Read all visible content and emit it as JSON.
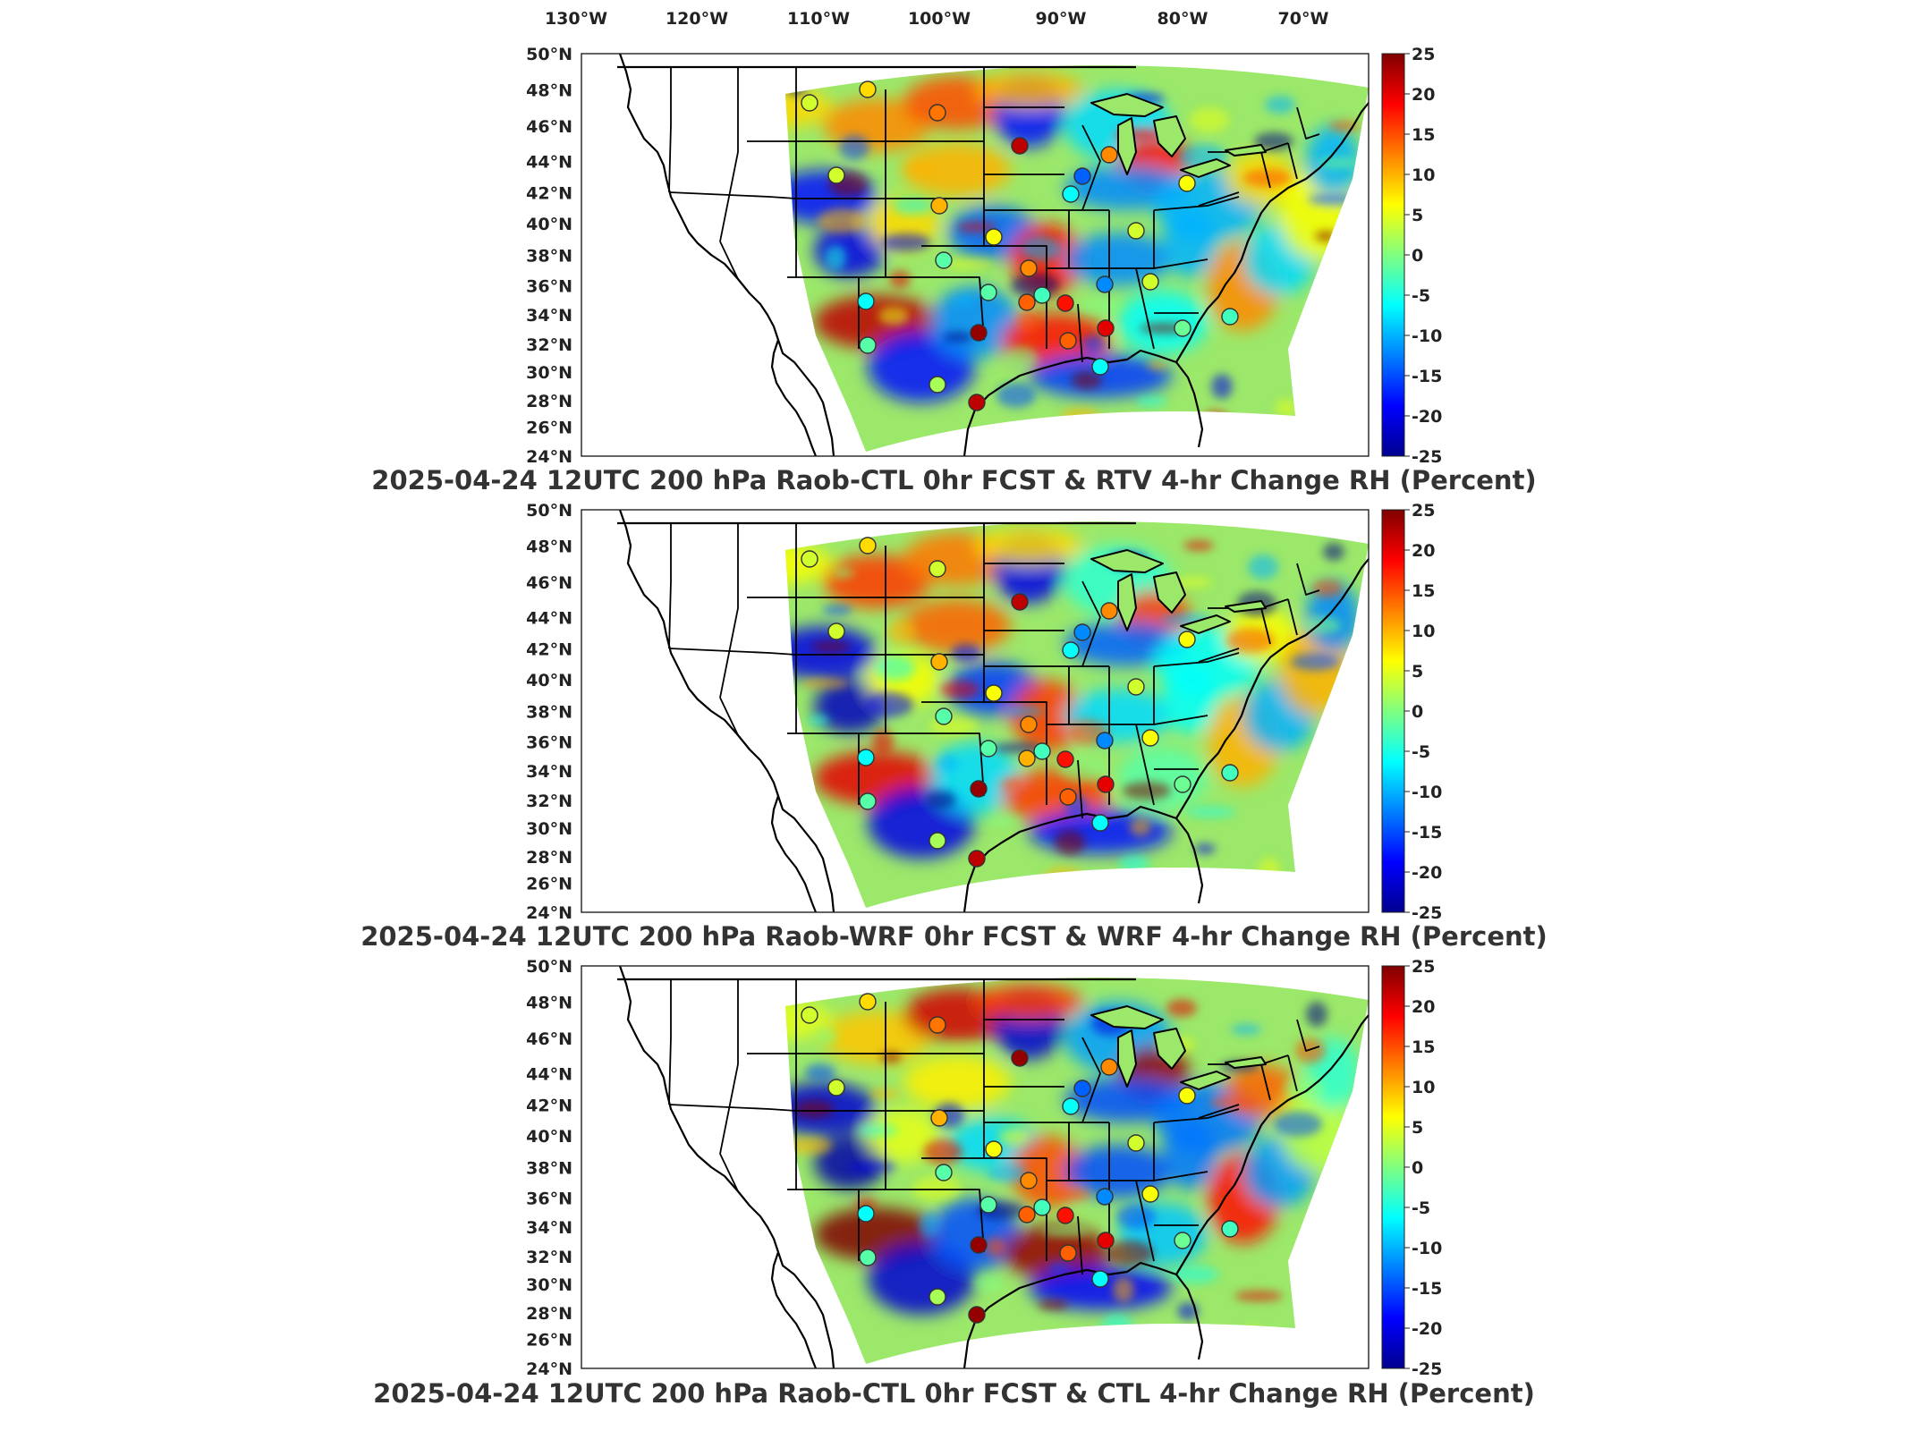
{
  "longitude_labels": [
    "130°W",
    "120°W",
    "110°W",
    "100°W",
    "90°W",
    "80°W",
    "70°W"
  ],
  "latitude_labels": [
    "50°N",
    "48°N",
    "46°N",
    "44°N",
    "42°N",
    "40°N",
    "38°N",
    "36°N",
    "34°N",
    "32°N",
    "30°N",
    "28°N",
    "26°N",
    "24°N"
  ],
  "colorbar": {
    "ticks": [
      "25",
      "20",
      "15",
      "10",
      "5",
      "0",
      "-5",
      "-10",
      "-15",
      "-20",
      "-25"
    ],
    "range": [
      -25,
      25
    ],
    "colormap": "jet",
    "colors": [
      "#00008f",
      "#0000ff",
      "#0080ff",
      "#00ffff",
      "#80ff80",
      "#ffff00",
      "#ff8000",
      "#ff0000",
      "#800000"
    ]
  },
  "panels": [
    {
      "title": "2025-04-24 12UTC 200 hPa Raob-CTL 0hr FCST & RTV 4-hr Change RH (Percent)",
      "raob_values": [
        4,
        8,
        13,
        22,
        -14,
        4,
        10,
        12,
        -6,
        4,
        -2,
        6,
        12,
        -3,
        4,
        14,
        18,
        24,
        -12,
        6,
        -2,
        -6,
        20,
        14,
        -2,
        -6,
        -1,
        -3,
        22,
        2
      ]
    },
    {
      "title": "2025-04-24 12UTC 200 hPa Raob-WRF 0hr FCST & WRF 4-hr Change RH (Percent)",
      "raob_values": [
        4,
        8,
        4,
        22,
        -12,
        4,
        10,
        12,
        -6,
        4,
        -2,
        6,
        12,
        -3,
        6,
        10,
        18,
        24,
        -12,
        6,
        -2,
        -6,
        20,
        14,
        -2,
        -6,
        -1,
        -3,
        22,
        2
      ]
    },
    {
      "title": "2025-04-24 12UTC 200 hPa Raob-CTL 0hr FCST & CTL 4-hr Change RH (Percent)",
      "raob_values": [
        4,
        8,
        13,
        24,
        -14,
        4,
        10,
        12,
        -6,
        4,
        -2,
        6,
        12,
        -3,
        6,
        14,
        18,
        24,
        -12,
        6,
        -2,
        -6,
        20,
        14,
        -2,
        -6,
        -1,
        -3,
        24,
        2
      ]
    }
  ]
}
